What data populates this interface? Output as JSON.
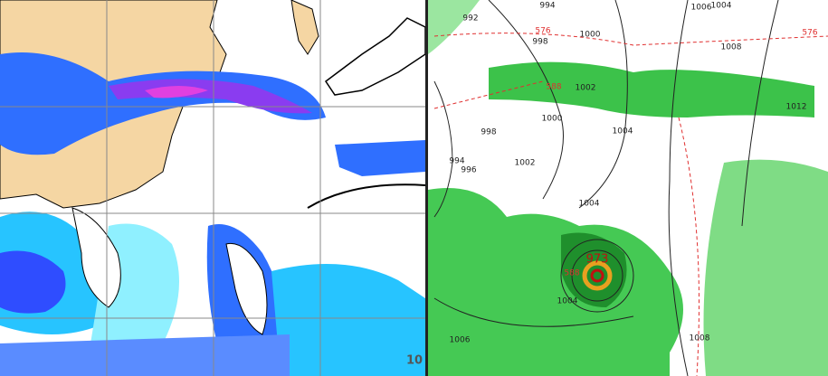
{
  "left_panel": {
    "labels": [
      "10"
    ]
  },
  "right_panel": {
    "isobar_labels": [
      "992",
      "994",
      "1000",
      "1006",
      "1004",
      "1008",
      "998",
      "1002",
      "1000",
      "998",
      "994",
      "996",
      "1002",
      "1004",
      "1004",
      "1012",
      "973",
      "1004",
      "1006",
      "1008"
    ],
    "height_labels": [
      "576",
      "588",
      "588",
      "576"
    ]
  }
}
